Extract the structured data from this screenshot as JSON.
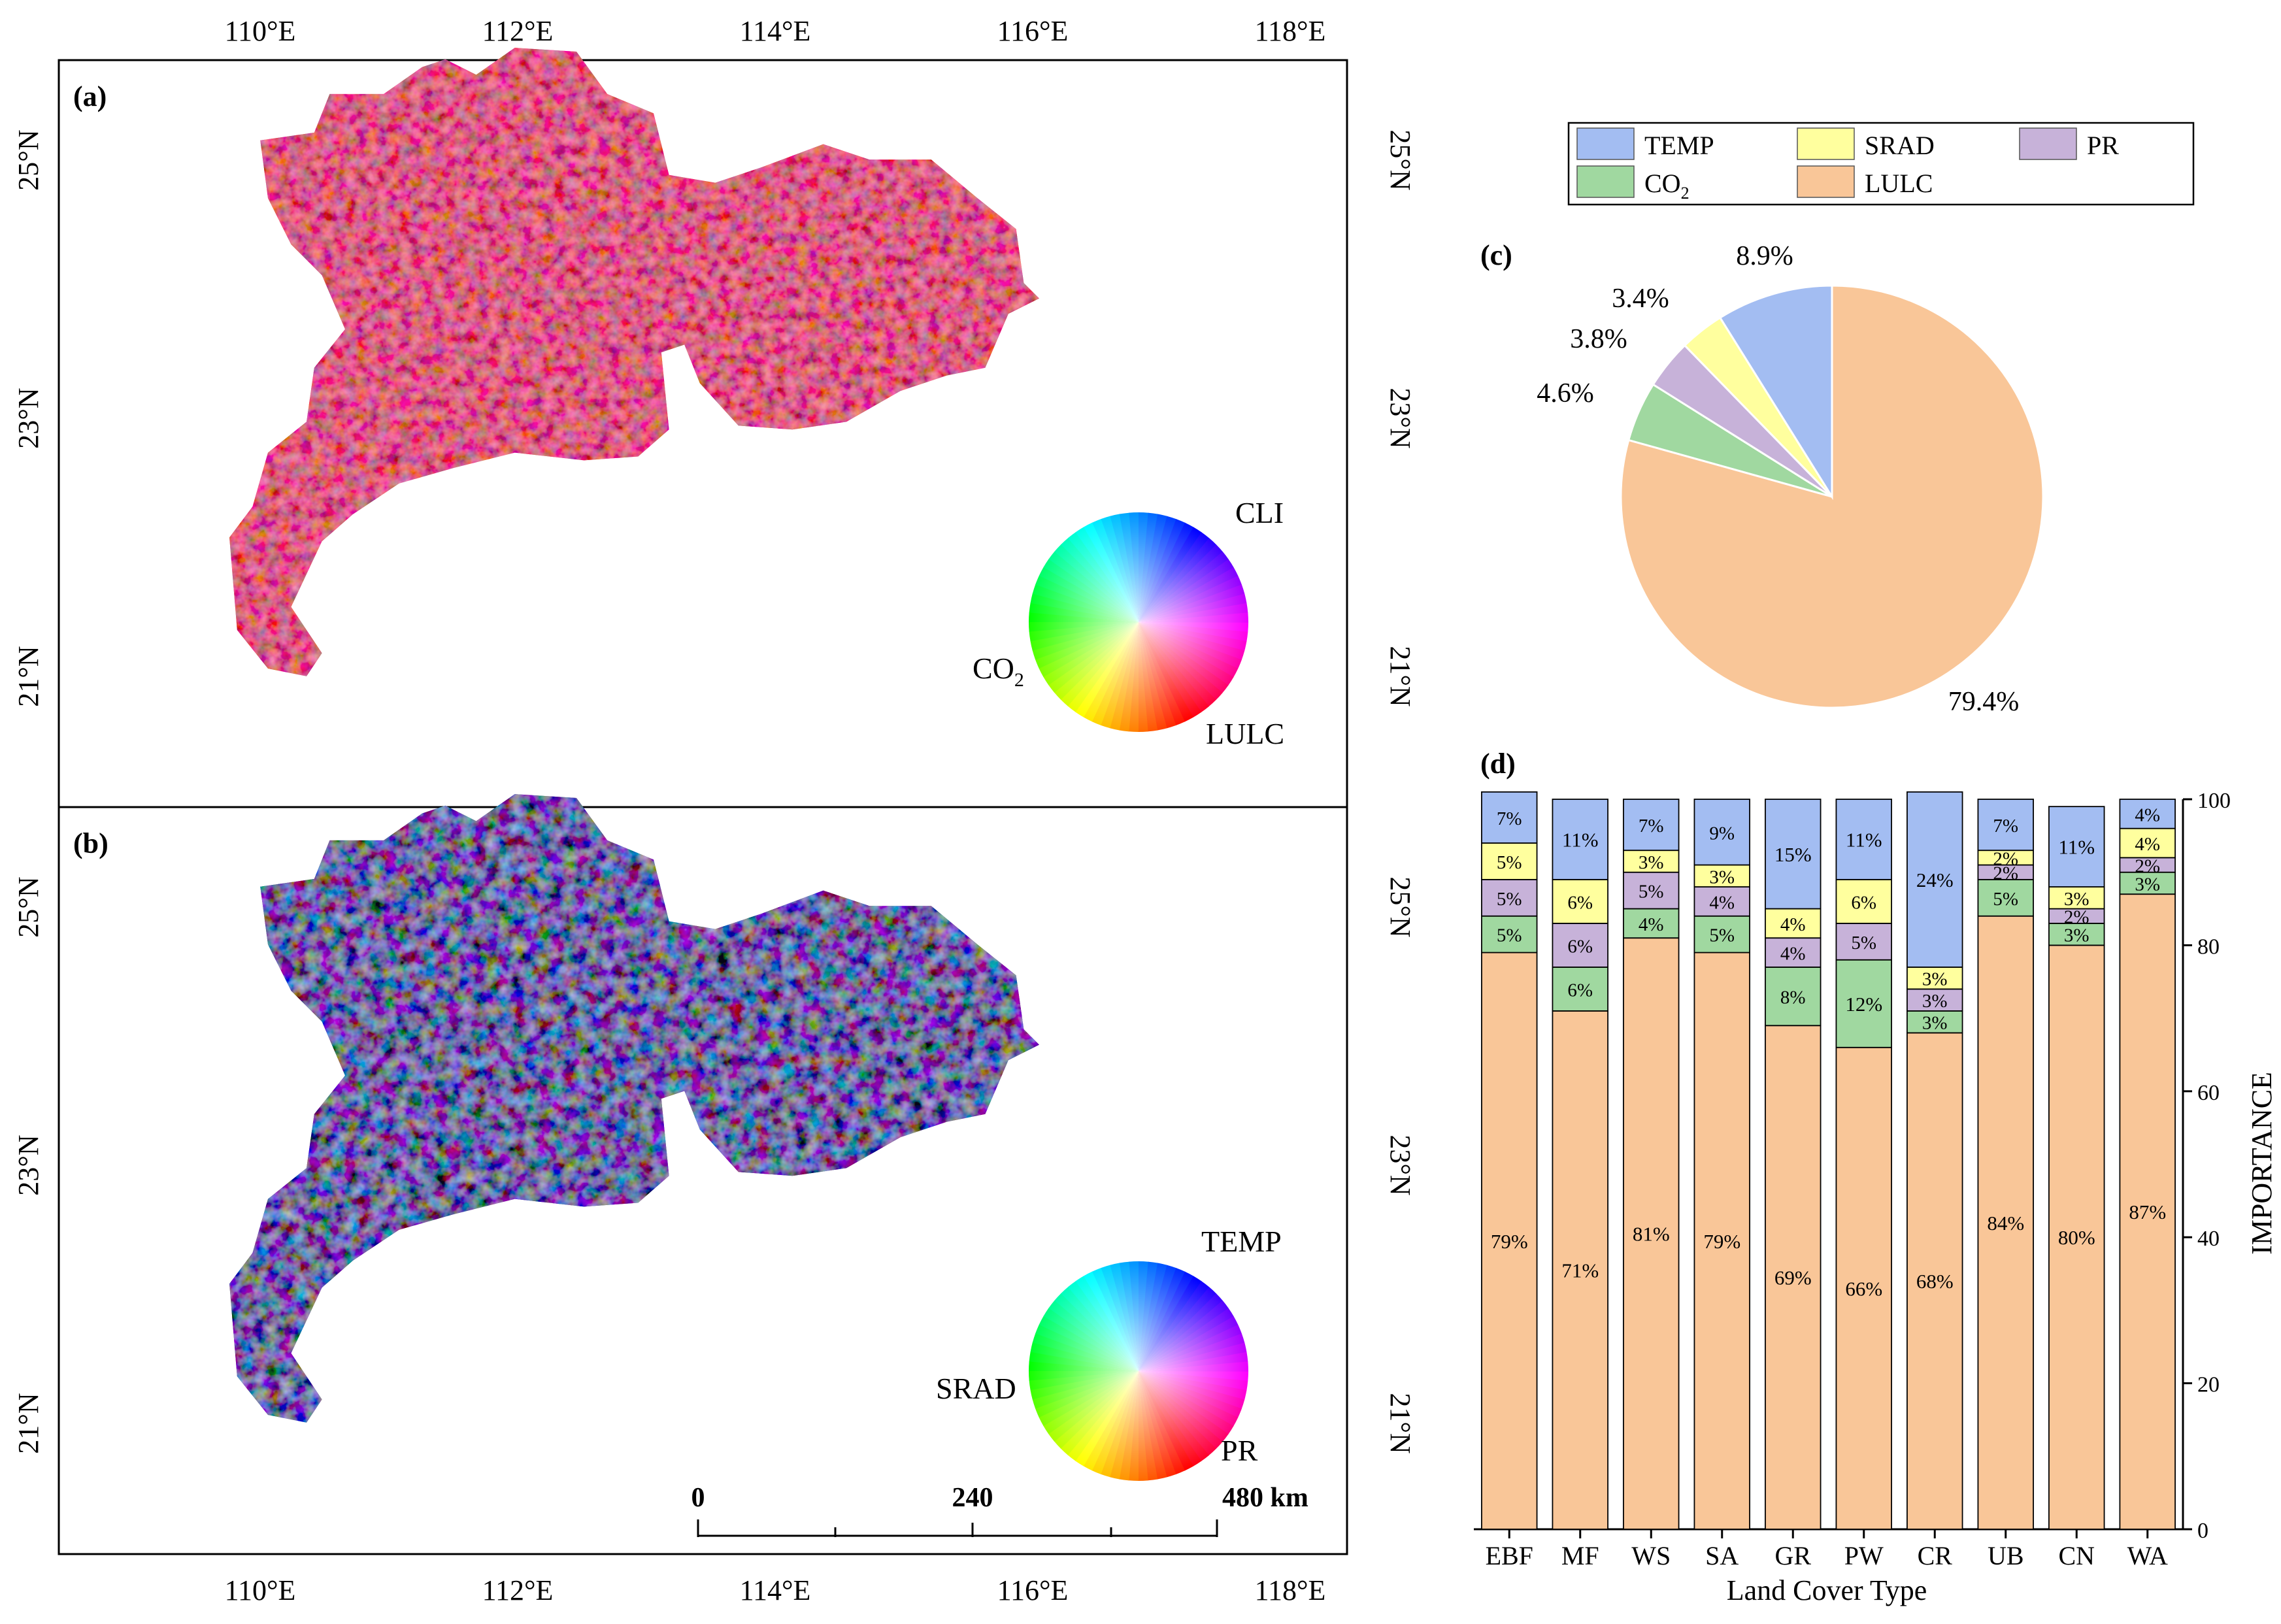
{
  "maps": {
    "lon_labels": [
      "110°E",
      "112°E",
      "114°E",
      "116°E",
      "118°E"
    ],
    "lat_labels": [
      "25°N",
      "23°N",
      "21°N"
    ],
    "panel_a": {
      "label": "(a)",
      "wheel": {
        "top": "CLI",
        "left": "CO",
        "left_sub": "2",
        "bottom": "LULC"
      }
    },
    "panel_b": {
      "label": "(b)",
      "wheel": {
        "top": "TEMP",
        "left": "SRAD",
        "bottom": "PR"
      }
    },
    "scalebar": {
      "labels": [
        "0",
        "240",
        "480 km"
      ]
    }
  },
  "legend": {
    "items": [
      {
        "label": "TEMP",
        "color": "#a3bdf2"
      },
      {
        "label": "SRAD",
        "color": "#ffff9e"
      },
      {
        "label": "PR",
        "color": "#c7b2d9"
      },
      {
        "label": "CO",
        "sub": "2",
        "color": "#a0d8a0"
      },
      {
        "label": "LULC",
        "color": "#f9c698"
      }
    ]
  },
  "chart_data": [
    {
      "panel": "(c)",
      "type": "pie",
      "slices": [
        {
          "name": "LULC",
          "value": 79.4,
          "label": "79.4%",
          "color": "#f9c698"
        },
        {
          "name": "CO2",
          "value": 4.6,
          "label": "4.6%",
          "color": "#a0d8a0"
        },
        {
          "name": "PR",
          "value": 3.8,
          "label": "3.8%",
          "color": "#c7b2d9"
        },
        {
          "name": "SRAD",
          "value": 3.4,
          "label": "3.4%",
          "color": "#ffff9e"
        },
        {
          "name": "TEMP",
          "value": 8.9,
          "label": "8.9%",
          "color": "#a3bdf2"
        }
      ]
    },
    {
      "panel": "(d)",
      "type": "bar",
      "stacked": true,
      "xlabel": "Land Cover Type",
      "ylabel": "IMPORTANCE",
      "ylim": [
        0,
        100
      ],
      "yticks": [
        0,
        20,
        40,
        60,
        80,
        100
      ],
      "categories": [
        "EBF",
        "MF",
        "WS",
        "SA",
        "GR",
        "PW",
        "CR",
        "UB",
        "CN",
        "WA"
      ],
      "series": [
        {
          "name": "LULC",
          "color": "#f9c698",
          "values": [
            79,
            71,
            81,
            79,
            69,
            66,
            68,
            84,
            80,
            87
          ]
        },
        {
          "name": "CO2",
          "color": "#a0d8a0",
          "values": [
            5,
            6,
            4,
            5,
            8,
            12,
            3,
            5,
            3,
            3
          ]
        },
        {
          "name": "PR",
          "color": "#c7b2d9",
          "values": [
            5,
            6,
            5,
            4,
            4,
            5,
            3,
            2,
            2,
            2
          ]
        },
        {
          "name": "SRAD",
          "color": "#ffff9e",
          "values": [
            5,
            6,
            3,
            3,
            4,
            6,
            3,
            2,
            3,
            4
          ]
        },
        {
          "name": "TEMP",
          "color": "#a3bdf2",
          "values": [
            7,
            11,
            7,
            9,
            15,
            11,
            24,
            7,
            11,
            4
          ]
        }
      ]
    }
  ]
}
